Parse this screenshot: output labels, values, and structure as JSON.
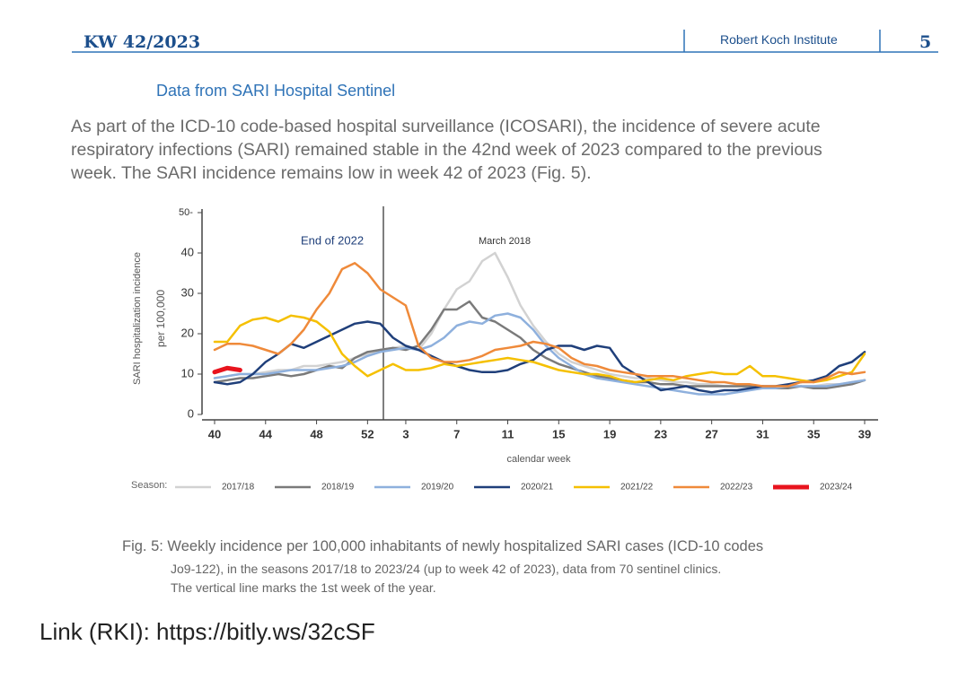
{
  "header": {
    "title": "KW 42/2023",
    "publisher": "Robert Koch Institute",
    "page": "5"
  },
  "heading": "Data from SARI Hospital Sentinel",
  "paragraph": [
    "As part of the ICD-10 code-based hospital surveillance (ICOSARI), the incidence of severe acute",
    "respiratory infections (SARI) remained stable in the 42nd week of 2023 compared to the previous",
    "week. The SARI incidence remains low in week 42 of 2023 (Fig. 5)."
  ],
  "chart_data": {
    "type": "line",
    "ylabel": [
      "SARI hospitalization incidence",
      "per 100,000"
    ],
    "xlabel": "calendar week",
    "annotations": [
      "End of 2022",
      "March 2018"
    ],
    "legend_title": "Season:",
    "categories": [
      "40",
      null,
      null,
      null,
      "44",
      null,
      null,
      null,
      "48",
      null,
      null,
      null,
      "52",
      null,
      null,
      "3",
      null,
      null,
      null,
      "7",
      null,
      null,
      null,
      "11",
      null,
      null,
      null,
      "15",
      null,
      null,
      null,
      "19",
      null,
      null,
      null,
      "23",
      null,
      null,
      null,
      "27",
      null,
      null,
      null,
      "31",
      null,
      null,
      null,
      "35",
      null,
      null,
      null,
      "39"
    ],
    "ylim": [
      0,
      50
    ],
    "yticks": [
      0,
      10,
      20,
      30,
      40,
      {
        "value": 50,
        "label": "50-"
      }
    ],
    "series": [
      {
        "name": "2017/18",
        "color": "#d2d2d2",
        "values": [
          9,
          9.5,
          10,
          10,
          10.5,
          11,
          11,
          12,
          12,
          12.5,
          13,
          14,
          15,
          16,
          16.5,
          17,
          16,
          20,
          26,
          31,
          33,
          38,
          40,
          34,
          27,
          22,
          18,
          15,
          13,
          12,
          11,
          10,
          9.5,
          9,
          9,
          8.5,
          8,
          8,
          7.5,
          7.5,
          7,
          7,
          7,
          7,
          7,
          7,
          7,
          7,
          7.5,
          7.5,
          8,
          8.5
        ]
      },
      {
        "name": "2018/19",
        "color": "#7a7a7a",
        "values": [
          8,
          8.5,
          9,
          9,
          9.5,
          10,
          9.5,
          10,
          11,
          12,
          11.5,
          14,
          15.5,
          16,
          16.5,
          16,
          17,
          21,
          26,
          26,
          28,
          24,
          23,
          21,
          19,
          16,
          14,
          12.5,
          11.5,
          10.5,
          9.5,
          9,
          8.5,
          8,
          8,
          7.5,
          7.5,
          7,
          7,
          7,
          7,
          7,
          7,
          7,
          6.5,
          6.5,
          7,
          6.5,
          6.5,
          7,
          7.5,
          8.5
        ]
      },
      {
        "name": "2019/20",
        "color": "#8eb0dd",
        "values": [
          9,
          9.5,
          10,
          10,
          10,
          10.5,
          11,
          11,
          11,
          11.5,
          12,
          13,
          14.5,
          15.5,
          16,
          16.5,
          16,
          17,
          19,
          22,
          23,
          22.5,
          24.5,
          25,
          24,
          21,
          17,
          14,
          12,
          10,
          9,
          8.5,
          8,
          7.5,
          7,
          6.5,
          6,
          5.5,
          5,
          5,
          5,
          5.5,
          6,
          6.5,
          6.5,
          7,
          7,
          7,
          7,
          7.5,
          8,
          8.5
        ]
      },
      {
        "name": "2020/21",
        "color": "#1f3f7a",
        "values": [
          8,
          7.5,
          8,
          10,
          13,
          15,
          17.5,
          16.5,
          18,
          19.5,
          21,
          22.5,
          23,
          22.5,
          19,
          17,
          16,
          14.5,
          13,
          12,
          11,
          10.5,
          10.5,
          11,
          12.5,
          13.5,
          16,
          17,
          17,
          16,
          17,
          16.5,
          12,
          10,
          8,
          6,
          6.5,
          7,
          6,
          5.5,
          6,
          6,
          6.5,
          7,
          7,
          7.5,
          8,
          8.5,
          9.5,
          12,
          13,
          15.5
        ]
      },
      {
        "name": "2021/22",
        "color": "#f5c000",
        "values": [
          18,
          18,
          22,
          23.5,
          24,
          23,
          24.5,
          24,
          23,
          20.5,
          15,
          12,
          9.5,
          11,
          12.5,
          11,
          11,
          11.5,
          12.5,
          12,
          12.5,
          13,
          13.5,
          14,
          13.5,
          13,
          12,
          11,
          10.5,
          10,
          10,
          9.5,
          8.5,
          8,
          8.5,
          9,
          8.5,
          9.5,
          10,
          10.5,
          10,
          10,
          12,
          9.5,
          9.5,
          9,
          8.5,
          8,
          8.5,
          9.5,
          10.5,
          15
        ]
      },
      {
        "name": "2022/23",
        "color": "#ef8a3a",
        "values": [
          16,
          17.5,
          17.5,
          17,
          16,
          15,
          17.5,
          21,
          26,
          30,
          36,
          37.5,
          35,
          31,
          29,
          27,
          17,
          14,
          13,
          13,
          13.5,
          14.5,
          16,
          16.5,
          17,
          18,
          17.5,
          16.5,
          14,
          12.5,
          12,
          11,
          10.5,
          10,
          9.5,
          9.5,
          9.5,
          9,
          8.5,
          8,
          8,
          7.5,
          7.5,
          7,
          7,
          7,
          8,
          8,
          9,
          10.5,
          10,
          10.5
        ]
      },
      {
        "name": "2023/24",
        "color": "#e8141e",
        "values": [
          10.5,
          11.5,
          11,
          null,
          null,
          null,
          null,
          null,
          null,
          null,
          null,
          null,
          null,
          null,
          null,
          null,
          null,
          null,
          null,
          null,
          null,
          null,
          null,
          null,
          null,
          null,
          null,
          null,
          null,
          null,
          null,
          null,
          null,
          null,
          null,
          null,
          null,
          null,
          null,
          null,
          null,
          null,
          null,
          null,
          null,
          null,
          null,
          null,
          null,
          null,
          null,
          null
        ]
      }
    ]
  },
  "caption": [
    "Fig. 5: Weekly incidence per 100,000 inhabitants of newly hospitalized SARI cases (ICD-10 codes",
    "Jo9-122), in the seasons 2017/18 to 2023/24 (up to week 42 of 2023), data from 70 sentinel clinics.",
    "The vertical line marks the 1st week of the year."
  ],
  "link": "Link (RKI): https://bitly.ws/32cSF"
}
